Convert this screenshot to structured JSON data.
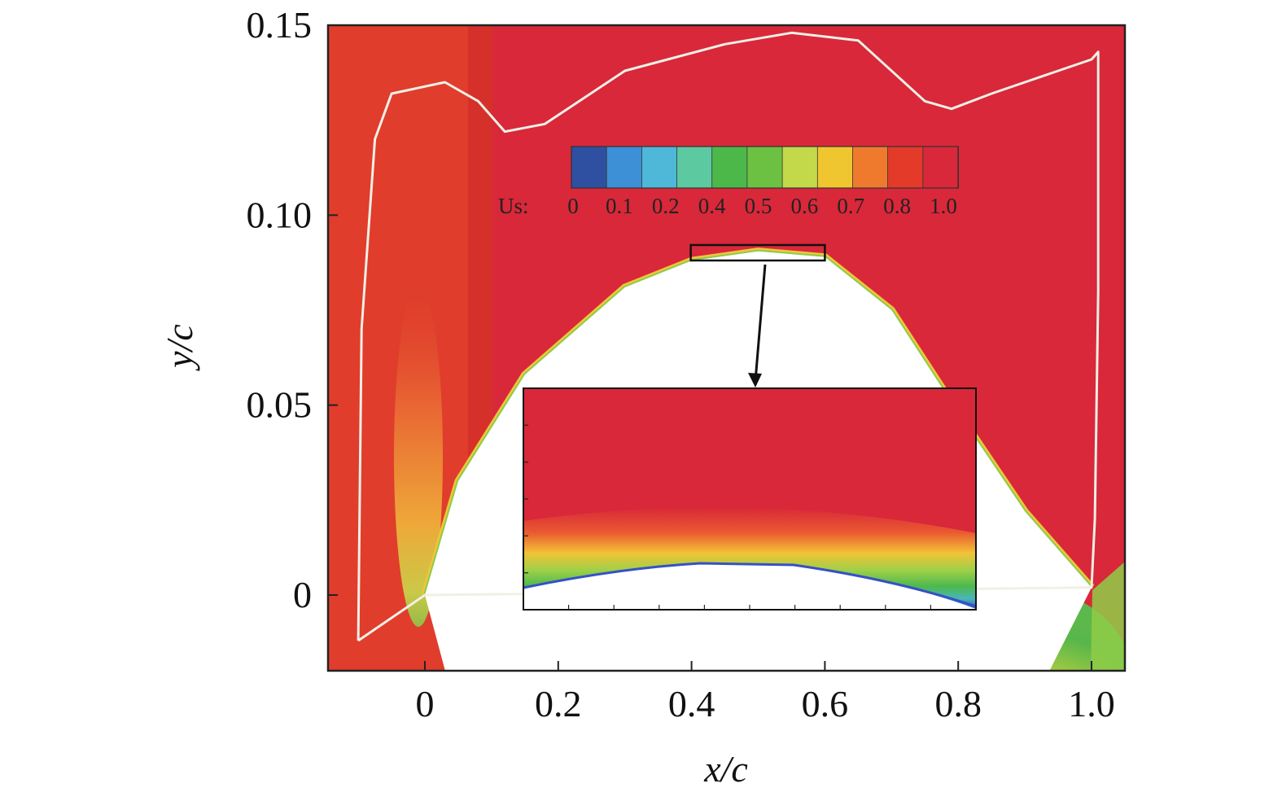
{
  "chart_data": {
    "type": "heatmap",
    "title": "",
    "xlabel": "x/c",
    "ylabel": "y/c",
    "xlim": [
      -0.15,
      1.05
    ],
    "ylim": [
      -0.02,
      0.15
    ],
    "x_ticks": [
      0,
      0.2,
      0.4,
      0.6,
      0.8,
      1.0
    ],
    "x_tick_labels": [
      "0",
      "0.2",
      "0.4",
      "0.6",
      "0.8",
      "1.0"
    ],
    "y_ticks": [
      0,
      0.05,
      0.1,
      0.15
    ],
    "y_tick_labels": [
      "0",
      "0.05",
      "0.10",
      "0.15"
    ],
    "colorbar": {
      "variable": "Us:",
      "tick_values": [
        0,
        0.1,
        0.2,
        0.4,
        0.5,
        0.6,
        0.7,
        0.8,
        1.0
      ],
      "tick_labels": [
        "0",
        "0.1",
        "0.2",
        "0.4",
        "0.5",
        "0.6",
        "0.7",
        "0.8",
        "1.0"
      ],
      "colors": [
        "#2f4fa0",
        "#3d8fd6",
        "#4fb8d8",
        "#5cc9a0",
        "#4db84a",
        "#6cc142",
        "#c4d94a",
        "#f0c630",
        "#ef7a2e",
        "#e33a2a",
        "#d8283a"
      ]
    },
    "field_color": "#d8283a",
    "boundary_line_color": "#f2efe6",
    "airfoil_upper_surface": [
      [
        0.0,
        0.0
      ],
      [
        0.05,
        0.03
      ],
      [
        0.15,
        0.058
      ],
      [
        0.3,
        0.081
      ],
      [
        0.4,
        0.088
      ],
      [
        0.5,
        0.0905
      ],
      [
        0.6,
        0.089
      ],
      [
        0.7,
        0.075
      ],
      [
        0.8,
        0.048
      ],
      [
        0.9,
        0.022
      ],
      [
        1.0,
        0.002
      ]
    ],
    "boundary_contour": [
      [
        -0.1,
        -0.012
      ],
      [
        -0.095,
        0.07
      ],
      [
        -0.075,
        0.12
      ],
      [
        -0.05,
        0.132
      ],
      [
        0.03,
        0.135
      ],
      [
        0.08,
        0.13
      ],
      [
        0.12,
        0.122
      ],
      [
        0.18,
        0.124
      ],
      [
        0.3,
        0.138
      ],
      [
        0.45,
        0.145
      ],
      [
        0.55,
        0.148
      ],
      [
        0.65,
        0.146
      ],
      [
        0.75,
        0.13
      ],
      [
        0.79,
        0.128
      ],
      [
        0.85,
        0.132
      ],
      [
        0.95,
        0.138
      ],
      [
        1.0,
        0.141
      ],
      [
        1.01,
        0.143
      ],
      [
        1.01,
        0.08
      ],
      [
        1.005,
        0.02
      ],
      [
        1.0,
        0.002
      ],
      [
        0.0,
        0.0
      ],
      [
        -0.1,
        -0.012
      ]
    ],
    "inset": {
      "zoom_region_x": [
        0.4,
        0.6
      ],
      "zoom_region_y": [
        0.087,
        0.093
      ]
    }
  }
}
